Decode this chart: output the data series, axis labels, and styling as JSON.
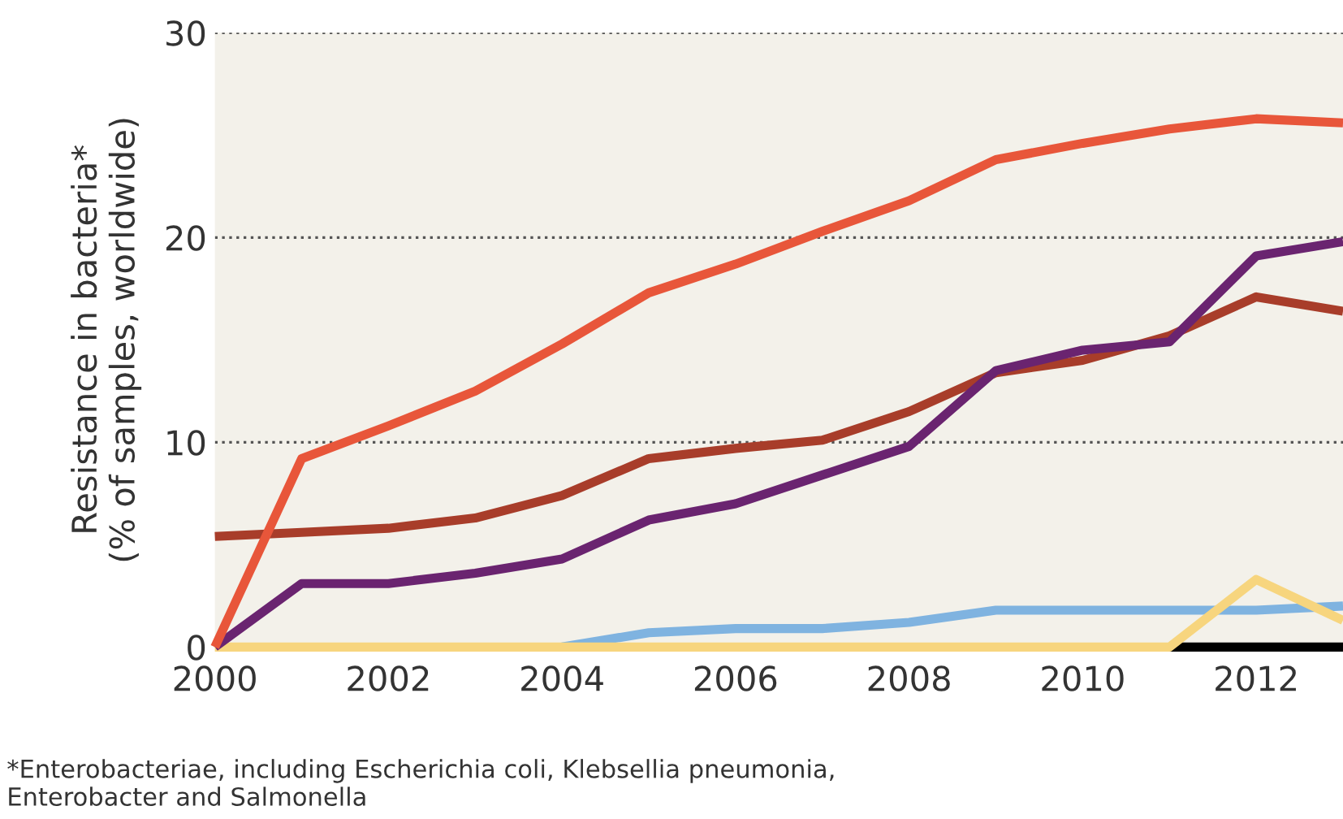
{
  "chart_data": {
    "type": "line",
    "ylabel": "Resistance in bacteria*\n(% of samples, worldwide)",
    "x": [
      2000,
      2001,
      2002,
      2003,
      2004,
      2005,
      2006,
      2007,
      2008,
      2009,
      2010,
      2011,
      2012,
      2013
    ],
    "series": [
      {
        "color": "#000000",
        "values": [
          null,
          null,
          null,
          null,
          null,
          null,
          null,
          null,
          null,
          null,
          null,
          0,
          0,
          0
        ]
      },
      {
        "color": "#7fb3e0",
        "values": [
          null,
          null,
          null,
          null,
          0,
          0.7,
          0.9,
          0.9,
          1.2,
          1.8,
          1.8,
          1.8,
          1.8,
          2.0
        ]
      },
      {
        "color": "#f7d57e",
        "values": [
          0,
          0,
          0,
          0,
          0,
          0,
          0,
          0,
          0,
          0,
          0,
          0,
          3.3,
          1.3
        ]
      },
      {
        "color": "#a83d2a",
        "values": [
          5.4,
          5.6,
          5.8,
          6.3,
          7.4,
          9.2,
          9.7,
          10.1,
          11.5,
          13.4,
          14.0,
          15.2,
          17.1,
          16.4
        ]
      },
      {
        "color": "#6a2470",
        "values": [
          0,
          3.1,
          3.1,
          3.6,
          4.3,
          6.2,
          7.0,
          8.4,
          9.8,
          13.5,
          14.5,
          14.9,
          19.1,
          19.8
        ]
      },
      {
        "color": "#e8563a",
        "values": [
          0,
          9.2,
          10.8,
          12.5,
          14.8,
          17.3,
          18.7,
          20.3,
          21.8,
          23.8,
          24.6,
          25.3,
          25.8,
          25.6
        ]
      }
    ],
    "xlim": [
      2000,
      2013
    ],
    "xticks": [
      2000,
      2002,
      2004,
      2006,
      2008,
      2010,
      2012
    ],
    "ylim": [
      0,
      30
    ],
    "yticks": [
      0,
      10,
      20,
      30
    ],
    "grid": "y",
    "legend": false,
    "marker": "none",
    "line_style": "solid",
    "annotations": [
      "*Enterobacteriae, including Escherichia coli, Klebsellia pneumonia,\nEnterobacter and Salmonella"
    ]
  }
}
